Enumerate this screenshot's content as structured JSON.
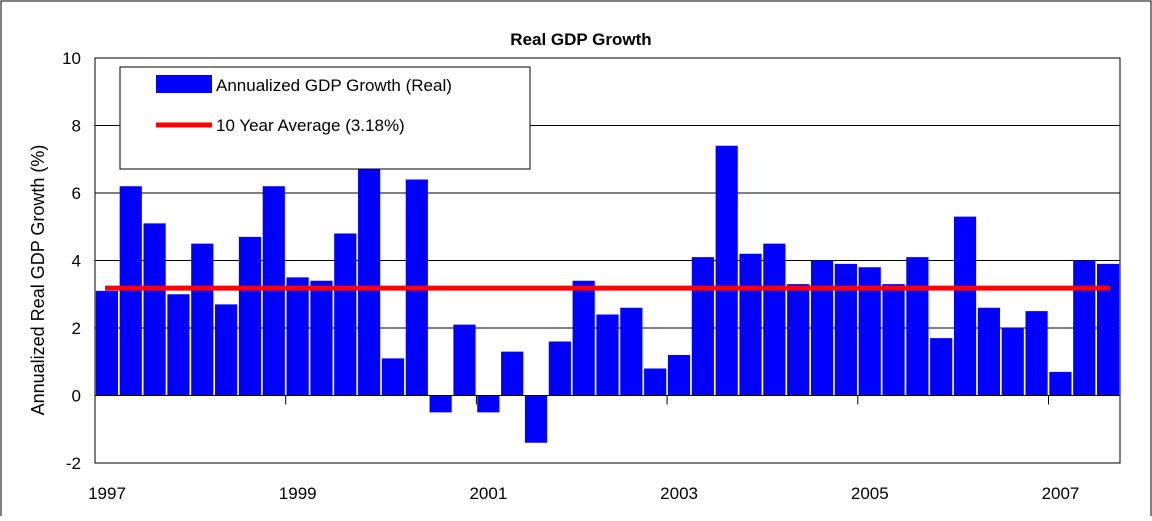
{
  "chart_data": {
    "type": "bar",
    "title": "Real GDP Growth",
    "xlabel": "",
    "ylabel": "Annualized Real GDP Growth (%)",
    "ylim": [
      -2,
      10
    ],
    "y_ticks": [
      "-2",
      "0",
      "2",
      "4",
      "6",
      "8",
      "10"
    ],
    "x_tick_labels": [
      "1997",
      "1999",
      "2001",
      "2003",
      "2005",
      "2007"
    ],
    "grid": "horizontal",
    "legend_placement": "top-left",
    "series": [
      {
        "name": "Annualized GDP Growth (Real)",
        "kind": "bar",
        "color": "#0000ff",
        "values": [
          3.1,
          6.2,
          5.1,
          3.0,
          4.5,
          2.7,
          4.7,
          6.2,
          3.5,
          3.4,
          4.8,
          7.3,
          1.1,
          6.4,
          -0.5,
          2.1,
          -0.5,
          1.3,
          -1.4,
          1.6,
          3.4,
          2.4,
          2.6,
          0.8,
          1.2,
          4.1,
          7.4,
          4.2,
          4.5,
          3.3,
          4.0,
          3.9,
          3.8,
          3.3,
          4.1,
          1.7,
          5.3,
          2.6,
          2.0,
          2.5,
          0.7,
          4.0,
          3.9
        ]
      },
      {
        "name": "10 Year Average (3.18%)",
        "kind": "line",
        "color": "#ff0000",
        "value": 3.18
      }
    ]
  }
}
